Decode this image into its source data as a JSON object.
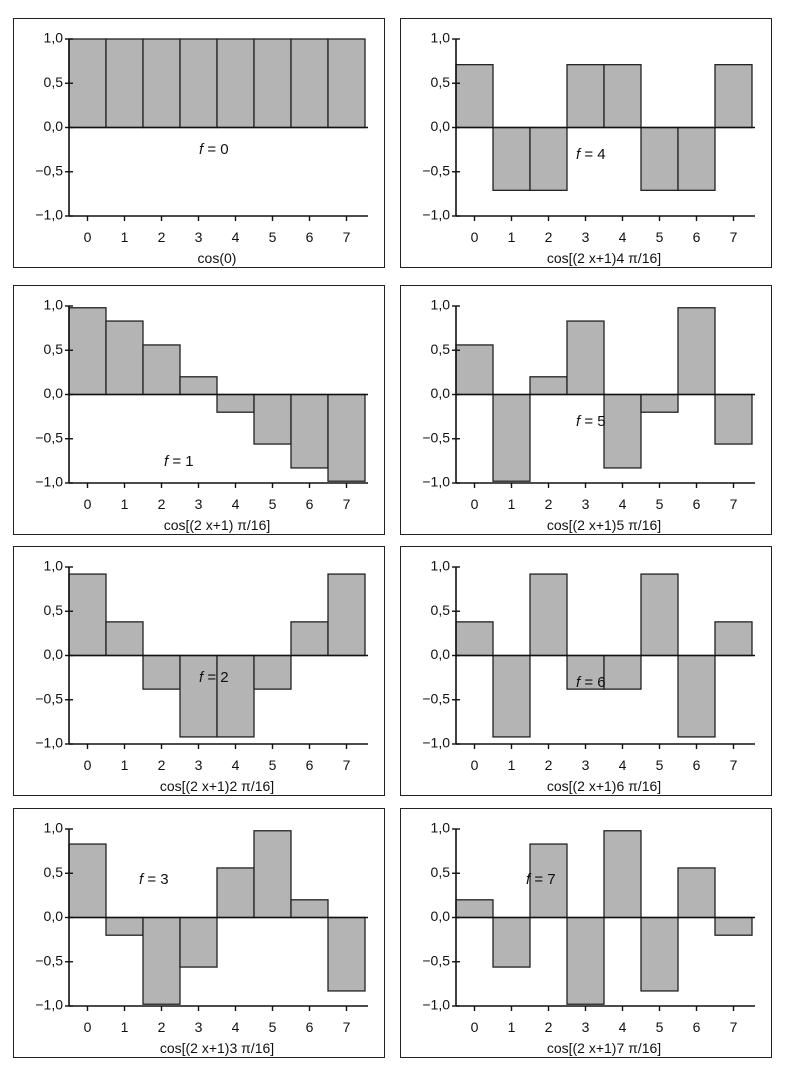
{
  "styles": {
    "bar_fill": "#b4b4b4",
    "bar_stroke": "#222222"
  },
  "chart_data": [
    {
      "type": "bar",
      "id": "f0",
      "f_label": "0",
      "caption": "cos(0)",
      "categories": [
        "0",
        "1",
        "2",
        "3",
        "4",
        "5",
        "6",
        "7"
      ],
      "values": [
        1.0,
        1.0,
        1.0,
        1.0,
        1.0,
        1.0,
        1.0,
        1.0
      ],
      "ylim": [
        -1.0,
        1.0
      ],
      "yticks": [
        "1,0",
        "0,5",
        "0,0",
        "−0,5",
        "−1,0"
      ],
      "label_pos": "center"
    },
    {
      "type": "bar",
      "id": "f4",
      "f_label": "4",
      "caption": "cos[(2 x+1)4 π/16]",
      "categories": [
        "0",
        "1",
        "2",
        "3",
        "4",
        "5",
        "6",
        "7"
      ],
      "values": [
        0.71,
        -0.71,
        -0.71,
        0.71,
        0.71,
        -0.71,
        -0.71,
        0.71
      ],
      "ylim": [
        -1.0,
        1.0
      ],
      "yticks": [
        "1,0",
        "0,5",
        "0,0",
        "−0,5",
        "−1,0"
      ],
      "label_pos": "center-right"
    },
    {
      "type": "bar",
      "id": "f1",
      "f_label": "1",
      "caption": "cos[(2 x+1) π/16]",
      "categories": [
        "0",
        "1",
        "2",
        "3",
        "4",
        "5",
        "6",
        "7"
      ],
      "values": [
        0.98,
        0.83,
        0.56,
        0.2,
        -0.2,
        -0.56,
        -0.83,
        -0.98
      ],
      "ylim": [
        -1.0,
        1.0
      ],
      "yticks": [
        "1,0",
        "0,5",
        "0,0",
        "−0,5",
        "−1,0"
      ],
      "label_pos": "lower-left"
    },
    {
      "type": "bar",
      "id": "f5",
      "f_label": "5",
      "caption": "cos[(2 x+1)5 π/16]",
      "categories": [
        "0",
        "1",
        "2",
        "3",
        "4",
        "5",
        "6",
        "7"
      ],
      "values": [
        0.56,
        -0.98,
        0.2,
        0.83,
        -0.83,
        -0.2,
        0.98,
        -0.56
      ],
      "ylim": [
        -1.0,
        1.0
      ],
      "yticks": [
        "1,0",
        "0,5",
        "0,0",
        "−0,5",
        "−1,0"
      ],
      "label_pos": "center-right"
    },
    {
      "type": "bar",
      "id": "f2",
      "f_label": "2",
      "caption": "cos[(2 x+1)2 π/16]",
      "categories": [
        "0",
        "1",
        "2",
        "3",
        "4",
        "5",
        "6",
        "7"
      ],
      "values": [
        0.92,
        0.38,
        -0.38,
        -0.92,
        -0.92,
        -0.38,
        0.38,
        0.92
      ],
      "ylim": [
        -1.0,
        1.0
      ],
      "yticks": [
        "1,0",
        "0,5",
        "0,0",
        "−0,5",
        "−1,0"
      ],
      "label_pos": "center"
    },
    {
      "type": "bar",
      "id": "f6",
      "f_label": "6",
      "caption": "cos[(2 x+1)6 π/16]",
      "categories": [
        "0",
        "1",
        "2",
        "3",
        "4",
        "5",
        "6",
        "7"
      ],
      "values": [
        0.38,
        -0.92,
        0.92,
        -0.38,
        -0.38,
        0.92,
        -0.92,
        0.38
      ],
      "ylim": [
        -1.0,
        1.0
      ],
      "yticks": [
        "1,0",
        "0,5",
        "0,0",
        "−0,5",
        "−1,0"
      ],
      "label_pos": "center-right"
    },
    {
      "type": "bar",
      "id": "f3",
      "f_label": "3",
      "caption": "cos[(2 x+1)3 π/16]",
      "categories": [
        "0",
        "1",
        "2",
        "3",
        "4",
        "5",
        "6",
        "7"
      ],
      "values": [
        0.83,
        -0.2,
        -0.98,
        -0.56,
        0.56,
        0.98,
        0.2,
        -0.83
      ],
      "ylim": [
        -1.0,
        1.0
      ],
      "yticks": [
        "1,0",
        "0,5",
        "0,0",
        "−0,5",
        "−1,0"
      ],
      "label_pos": "upper-left"
    },
    {
      "type": "bar",
      "id": "f7",
      "f_label": "7",
      "caption": "cos[(2 x+1)7 π/16]",
      "categories": [
        "0",
        "1",
        "2",
        "3",
        "4",
        "5",
        "6",
        "7"
      ],
      "values": [
        0.2,
        -0.56,
        0.83,
        -0.98,
        0.98,
        -0.83,
        0.56,
        -0.2
      ],
      "ylim": [
        -1.0,
        1.0
      ],
      "yticks": [
        "1,0",
        "0,5",
        "0,0",
        "−0,5",
        "−1,0"
      ],
      "label_pos": "upper-left"
    }
  ]
}
